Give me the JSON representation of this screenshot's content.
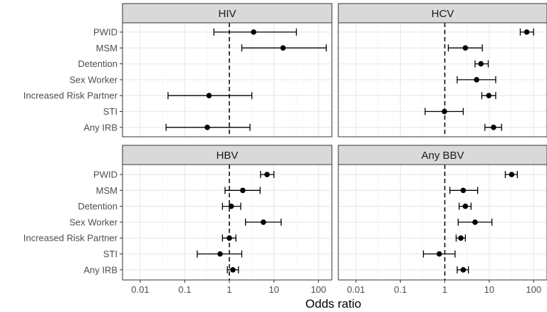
{
  "chart_data": {
    "type": "scatter",
    "subtype": "forest-plot",
    "xlabel": "Odds ratio",
    "ylabel": "",
    "xscale": "log10",
    "xlim": [
      0.004,
      200
    ],
    "xticks": [
      0.01,
      0.1,
      1,
      10,
      100
    ],
    "xtick_labels": [
      "0.01",
      "0.1",
      "1",
      "10",
      "100"
    ],
    "reference_line": 1,
    "grid": true,
    "categories": [
      "PWID",
      "MSM",
      "Detention",
      "Sex Worker",
      "Increased Risk Partner",
      "STI",
      "Any IRB"
    ],
    "panels": [
      {
        "title": "HIV",
        "estimates": [
          3.5,
          16,
          null,
          null,
          0.35,
          null,
          0.32
        ],
        "lower": [
          0.45,
          1.9,
          null,
          null,
          0.042,
          null,
          0.038
        ],
        "upper": [
          32,
          150,
          null,
          null,
          3.2,
          null,
          2.9
        ]
      },
      {
        "title": "HCV",
        "estimates": [
          70,
          2.9,
          6.5,
          5.2,
          9.8,
          0.98,
          12.5
        ],
        "lower": [
          50,
          1.2,
          4.8,
          1.9,
          6.8,
          0.36,
          8.0
        ],
        "upper": [
          100,
          7.0,
          9.5,
          14,
          14,
          2.6,
          19
        ]
      },
      {
        "title": "HBV",
        "estimates": [
          7.0,
          2.0,
          1.1,
          5.8,
          1.0,
          0.62,
          1.2
        ],
        "lower": [
          5.0,
          0.8,
          0.7,
          2.3,
          0.7,
          0.19,
          0.9
        ],
        "upper": [
          10,
          4.9,
          1.8,
          14.5,
          1.4,
          1.9,
          1.6
        ]
      },
      {
        "title": "Any BBV",
        "estimates": [
          32,
          2.6,
          2.9,
          4.8,
          2.3,
          0.75,
          2.6
        ],
        "lower": [
          23,
          1.3,
          2.1,
          2.0,
          1.8,
          0.33,
          1.9
        ],
        "upper": [
          43,
          5.5,
          3.9,
          11.5,
          2.9,
          1.7,
          3.4
        ]
      }
    ]
  }
}
